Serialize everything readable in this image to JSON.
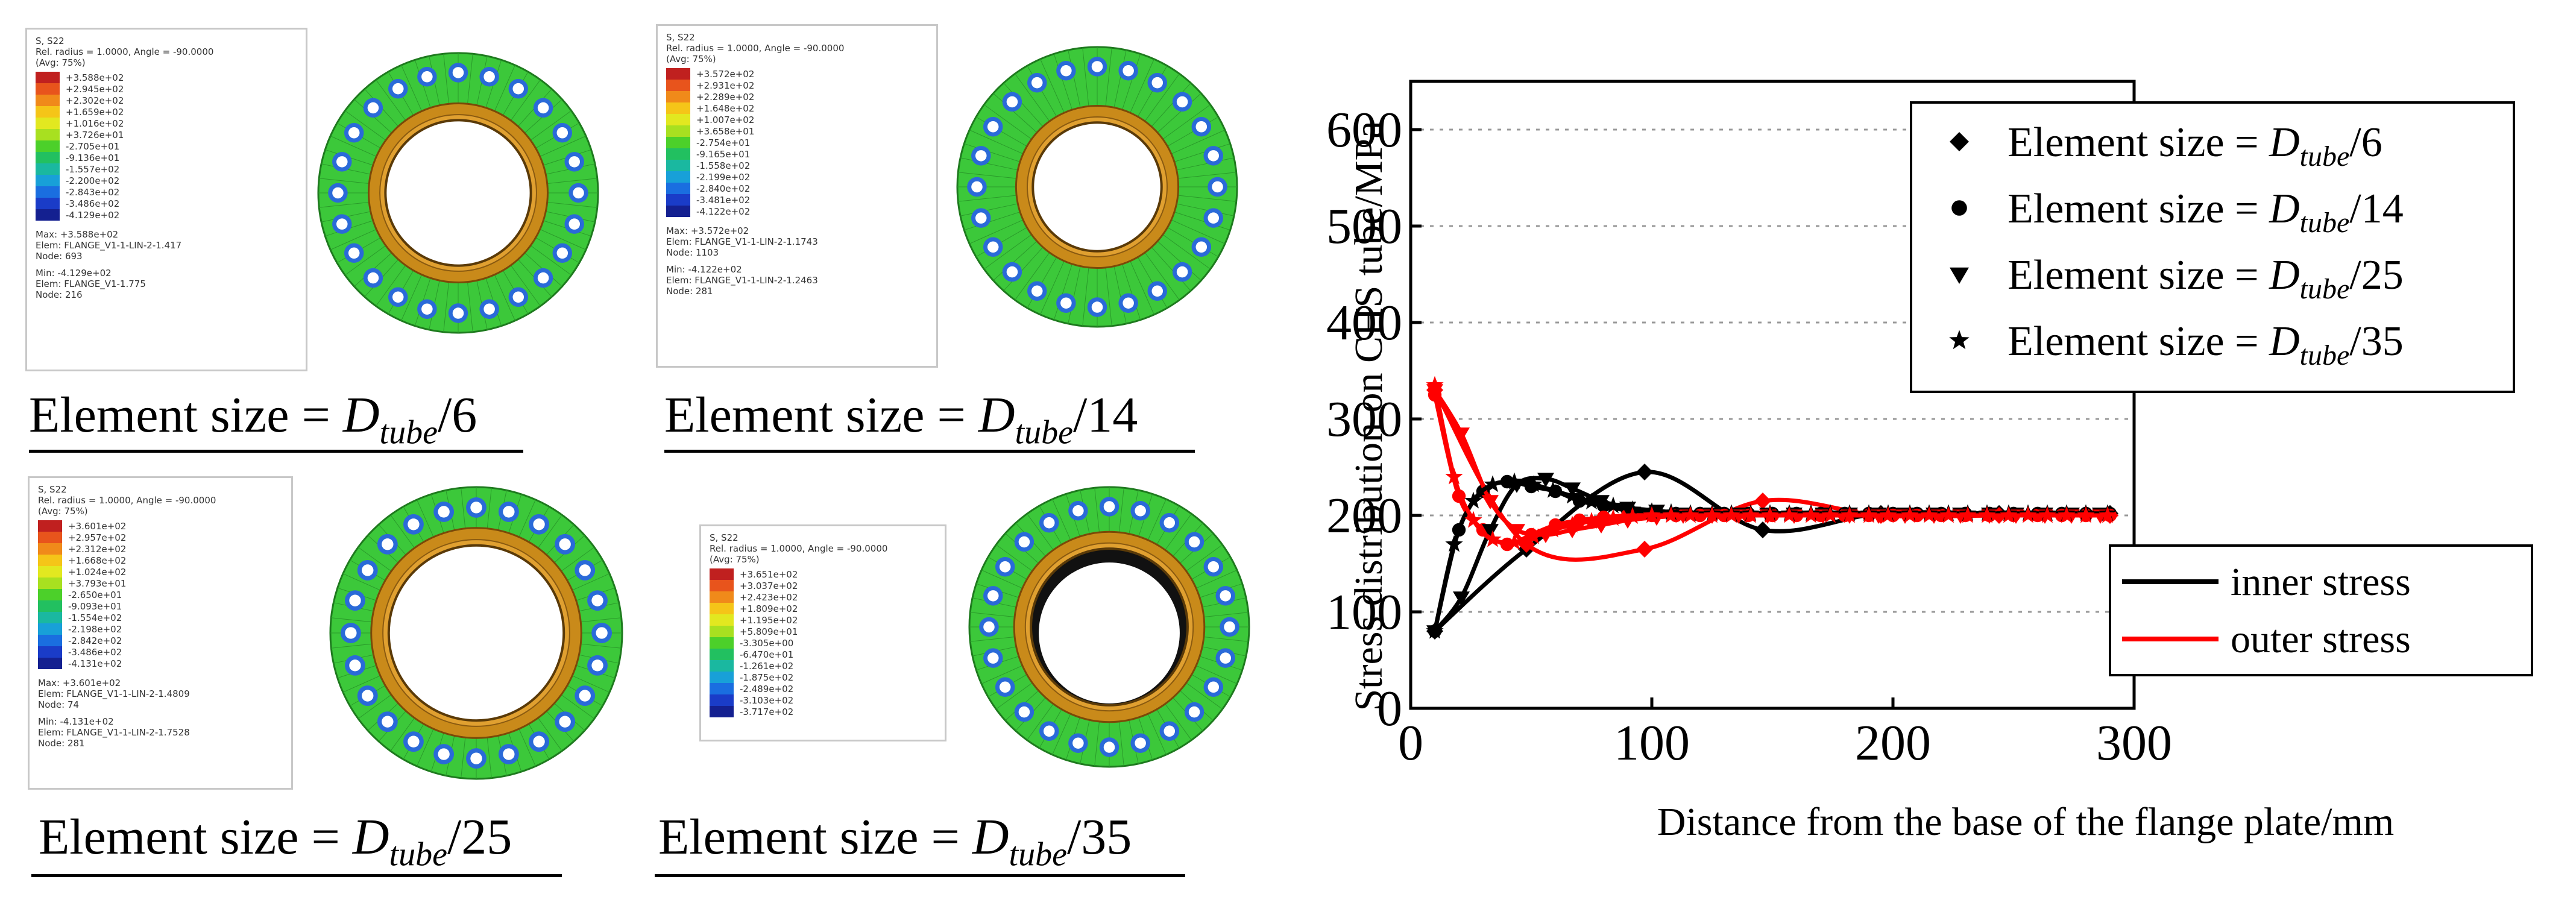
{
  "panels": [
    {
      "caption": {
        "prefix": "Element size = ",
        "d": "D",
        "sub": "tube",
        "divisor": "6"
      },
      "legend": {
        "header": [
          "S, S22",
          "Rel. radius = 1.0000, Angle = -90.0000",
          "(Avg: 75%)"
        ],
        "levels": [
          "+3.588e+02",
          "+2.945e+02",
          "+2.302e+02",
          "+1.659e+02",
          "+1.016e+02",
          "+3.726e+01",
          "-2.705e+01",
          "-9.136e+01",
          "-1.557e+02",
          "-2.200e+02",
          "-2.843e+02",
          "-3.486e+02",
          "-4.129e+02"
        ],
        "info": [
          "Max: +3.588e+02",
          "Elem: FLANGE_V1-1-LIN-2-1.417",
          "Node: 693",
          "Min: -4.129e+02",
          "Elem: FLANGE_V1-1.775",
          "Node: 216"
        ]
      }
    },
    {
      "caption": {
        "prefix": "Element size = ",
        "d": "D",
        "sub": "tube",
        "divisor": "14"
      },
      "legend": {
        "header": [
          "S, S22",
          "Rel. radius = 1.0000, Angle = -90.0000",
          "(Avg: 75%)"
        ],
        "levels": [
          "+3.572e+02",
          "+2.931e+02",
          "+2.289e+02",
          "+1.648e+02",
          "+1.007e+02",
          "+3.658e+01",
          "-2.754e+01",
          "-9.165e+01",
          "-1.558e+02",
          "-2.199e+02",
          "-2.840e+02",
          "-3.481e+02",
          "-4.122e+02"
        ],
        "info": [
          "Max: +3.572e+02",
          "Elem: FLANGE_V1-1-LIN-2-1.1743",
          "Node: 1103",
          "Min: -4.122e+02",
          "Elem: FLANGE_V1-1-LIN-2-1.2463",
          "Node: 281"
        ]
      }
    },
    {
      "caption": {
        "prefix": "Element size = ",
        "d": "D",
        "sub": "tube",
        "divisor": "25"
      },
      "legend": {
        "header": [
          "S, S22",
          "Rel. radius = 1.0000, Angle = -90.0000",
          "(Avg: 75%)"
        ],
        "levels": [
          "+3.601e+02",
          "+2.957e+02",
          "+2.312e+02",
          "+1.668e+02",
          "+1.024e+02",
          "+3.793e+01",
          "-2.650e+01",
          "-9.093e+01",
          "-1.554e+02",
          "-2.198e+02",
          "-2.842e+02",
          "-3.486e+02",
          "-4.131e+02"
        ],
        "info": [
          "Max: +3.601e+02",
          "Elem: FLANGE_V1-1-LIN-2-1.4809",
          "Node: 74",
          "Min: -4.131e+02",
          "Elem: FLANGE_V1-1-LIN-2-1.7528",
          "Node: 281"
        ]
      }
    },
    {
      "caption": {
        "prefix": "Element size = ",
        "d": "D",
        "sub": "tube",
        "divisor": "35"
      },
      "legend": {
        "header": [
          "S, S22",
          "Rel. radius = 1.0000, Angle = -90.0000",
          "(Avg: 75%)"
        ],
        "levels": [
          "+3.651e+02",
          "+3.037e+02",
          "+2.423e+02",
          "+1.809e+02",
          "+1.195e+02",
          "+5.809e+01",
          "-3.305e+00",
          "-6.470e+01",
          "-1.261e+02",
          "-1.875e+02",
          "-2.489e+02",
          "-3.103e+02",
          "-3.717e+02"
        ],
        "info": []
      }
    }
  ],
  "contour_colors": [
    "#c0201f",
    "#e8541c",
    "#f08a1a",
    "#f5c518",
    "#e2e820",
    "#a8e020",
    "#4cd02a",
    "#22c060",
    "#1ab8a0",
    "#18a0d8",
    "#1a6ee0",
    "#1a3cc8",
    "#142090"
  ],
  "series_colors": {
    "inner": "#000000",
    "outer": "#ff0000"
  },
  "chart_data": {
    "type": "line",
    "xlabel": "Distance from the base of the flange plate/mm",
    "ylabel": "Stress distribution on CHS tube/MPa",
    "xlim": [
      0,
      300
    ],
    "ylim": [
      0,
      650
    ],
    "xticks": [
      0,
      100,
      200,
      300
    ],
    "yticks": [
      0,
      100,
      200,
      300,
      400,
      500,
      600
    ],
    "grid": "horizontal dotted",
    "legend_markers": [
      {
        "marker": "diamond",
        "prefix": "Element size = ",
        "d": "D",
        "sub": "tube",
        "divisor": "/6"
      },
      {
        "marker": "circle",
        "prefix": "Element size = ",
        "d": "D",
        "sub": "tube",
        "divisor": "/14"
      },
      {
        "marker": "triangle-down",
        "prefix": "Element size = ",
        "d": "D",
        "sub": "tube",
        "divisor": "/25"
      },
      {
        "marker": "star",
        "prefix": "Element size = ",
        "d": "D",
        "sub": "tube",
        "divisor": "/35"
      }
    ],
    "legend_lines": [
      {
        "name": "inner stress",
        "key": "inner"
      },
      {
        "name": "outer stress",
        "key": "outer"
      }
    ],
    "series": [
      {
        "name": "inner D/6",
        "group": "inner",
        "marker": "diamond",
        "x": [
          10,
          48,
          97,
          146,
          195,
          244,
          290
        ],
        "y": [
          80,
          165,
          245,
          185,
          202,
          202,
          202
        ]
      },
      {
        "name": "outer D/6",
        "group": "outer",
        "marker": "diamond",
        "x": [
          10,
          48,
          97,
          146,
          195,
          244,
          290
        ],
        "y": [
          330,
          170,
          165,
          215,
          200,
          200,
          200
        ]
      },
      {
        "name": "inner D/14",
        "group": "inner",
        "marker": "circle",
        "x": [
          10,
          20,
          30,
          40,
          50,
          60,
          70,
          80,
          90,
          100,
          110,
          120,
          130,
          140,
          150,
          160,
          170,
          180,
          190,
          200,
          210,
          220,
          230,
          240,
          250,
          260,
          270,
          280,
          290
        ],
        "y": [
          80,
          185,
          225,
          235,
          230,
          225,
          215,
          210,
          205,
          202,
          202,
          202,
          202,
          202,
          202,
          202,
          202,
          202,
          202,
          202,
          202,
          202,
          202,
          202,
          202,
          202,
          202,
          202,
          202
        ]
      },
      {
        "name": "outer D/14",
        "group": "outer",
        "marker": "circle",
        "x": [
          10,
          20,
          30,
          40,
          50,
          60,
          70,
          80,
          90,
          100,
          110,
          120,
          130,
          140,
          150,
          160,
          170,
          180,
          190,
          200,
          210,
          220,
          230,
          240,
          250,
          260,
          270,
          280,
          290
        ],
        "y": [
          325,
          220,
          185,
          170,
          180,
          190,
          195,
          198,
          200,
          200,
          200,
          200,
          200,
          200,
          200,
          200,
          200,
          200,
          200,
          200,
          200,
          200,
          200,
          200,
          200,
          200,
          200,
          200,
          200
        ]
      },
      {
        "name": "inner D/25",
        "group": "inner",
        "marker": "triangle-down",
        "x": [
          10,
          21,
          33,
          44,
          56,
          67,
          79,
          90,
          102,
          113,
          125,
          136,
          148,
          159,
          171,
          182,
          194,
          205,
          217,
          228,
          240,
          251,
          263,
          274,
          286
        ],
        "y": [
          80,
          115,
          185,
          232,
          238,
          228,
          215,
          208,
          205,
          202,
          202,
          202,
          202,
          202,
          202,
          202,
          202,
          202,
          202,
          202,
          202,
          202,
          202,
          202,
          202
        ]
      },
      {
        "name": "outer D/25",
        "group": "outer",
        "marker": "triangle-down",
        "x": [
          10,
          21,
          33,
          44,
          56,
          67,
          79,
          90,
          102,
          113,
          125,
          136,
          148,
          159,
          171,
          182,
          194,
          205,
          217,
          228,
          240,
          251,
          263,
          274,
          286
        ],
        "y": [
          330,
          285,
          215,
          185,
          180,
          185,
          190,
          195,
          198,
          200,
          200,
          200,
          200,
          200,
          200,
          200,
          200,
          200,
          200,
          200,
          200,
          200,
          200,
          200,
          200
        ]
      },
      {
        "name": "inner D/35",
        "group": "inner",
        "marker": "star",
        "x": [
          10,
          18,
          26,
          34,
          43,
          51,
          59,
          67,
          75,
          84,
          92,
          100,
          108,
          116,
          125,
          133,
          141,
          149,
          157,
          166,
          174,
          182,
          190,
          198,
          207,
          215,
          223,
          231,
          239,
          248,
          256,
          264,
          272,
          280,
          289
        ],
        "y": [
          80,
          170,
          215,
          232,
          235,
          232,
          226,
          220,
          214,
          210,
          206,
          204,
          203,
          202,
          202,
          202,
          202,
          202,
          202,
          202,
          202,
          202,
          202,
          202,
          202,
          202,
          202,
          202,
          202,
          202,
          202,
          202,
          202,
          202,
          202
        ]
      },
      {
        "name": "outer D/35",
        "group": "outer",
        "marker": "star",
        "x": [
          10,
          18,
          26,
          34,
          43,
          51,
          59,
          67,
          75,
          84,
          92,
          100,
          108,
          116,
          125,
          133,
          141,
          149,
          157,
          166,
          174,
          182,
          190,
          198,
          207,
          215,
          223,
          231,
          239,
          248,
          256,
          264,
          272,
          280,
          289
        ],
        "y": [
          335,
          240,
          195,
          175,
          172,
          178,
          185,
          190,
          194,
          197,
          199,
          200,
          200,
          200,
          200,
          200,
          200,
          200,
          200,
          200,
          200,
          200,
          200,
          200,
          200,
          200,
          200,
          200,
          200,
          200,
          200,
          200,
          200,
          200,
          200
        ]
      }
    ]
  }
}
